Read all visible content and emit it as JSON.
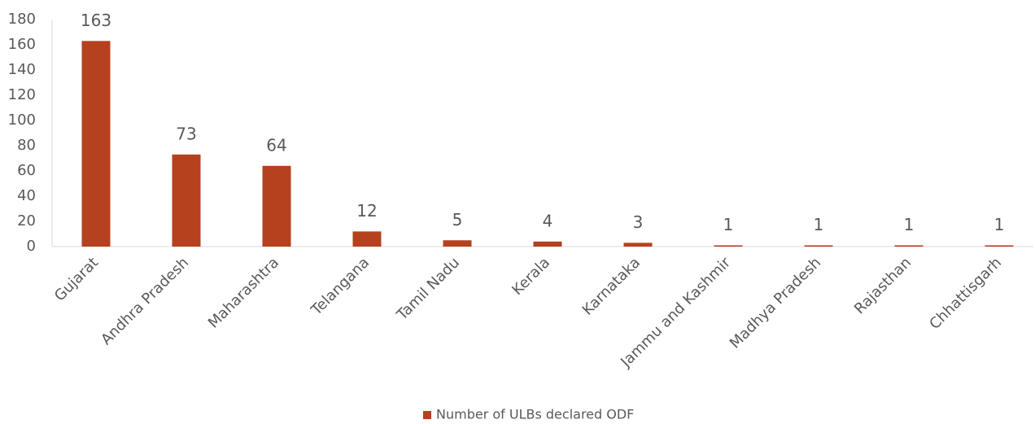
{
  "chart_data": {
    "type": "bar",
    "categories": [
      "Gujarat",
      "Andhra Pradesh",
      "Maharashtra",
      "Telangana",
      "Tamil Nadu",
      "Kerala",
      "Karnataka",
      "Jammu and Kashmir",
      "Madhya Pradesh",
      "Rajasthan",
      "Chhattisgarh"
    ],
    "series": [
      {
        "name": "Number of ULBs declared ODF",
        "color": "#b5411f",
        "values": [
          163,
          73,
          64,
          12,
          5,
          4,
          3,
          1,
          1,
          1,
          1
        ]
      }
    ],
    "ylim": [
      0,
      180
    ],
    "yticks": [
      0,
      20,
      40,
      60,
      80,
      100,
      120,
      140,
      160,
      180
    ],
    "legend": "bottom"
  }
}
